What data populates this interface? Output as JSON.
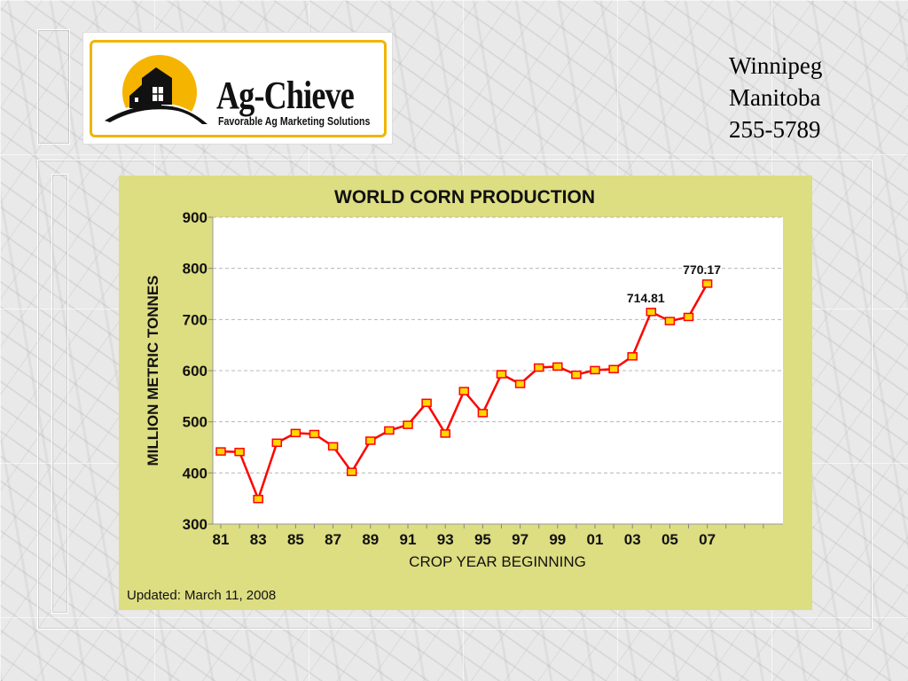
{
  "logo": {
    "name": "Ag-Chieve",
    "tagline": "Favorable Ag Marketing Solutions"
  },
  "contact": {
    "city": "Winnipeg",
    "province": "Manitoba",
    "phone": "255-5789"
  },
  "colors": {
    "panel": "#dddd82",
    "line": "#ff0000",
    "marker_fill": "#ffd700",
    "logo_accent": "#f0b500"
  },
  "chart_data": {
    "type": "line",
    "title": "WORLD CORN PRODUCTION",
    "xlabel": "CROP YEAR BEGINNING",
    "ylabel": "MILLION METRIC TONNES",
    "ylim": [
      300,
      900
    ],
    "yticks": [
      300,
      400,
      500,
      600,
      700,
      800,
      900
    ],
    "x": [
      81,
      82,
      83,
      84,
      85,
      86,
      87,
      88,
      89,
      90,
      91,
      92,
      93,
      94,
      95,
      96,
      97,
      98,
      99,
      100,
      101,
      102,
      103,
      104,
      105,
      106,
      107
    ],
    "xtick_labels": [
      "81",
      "83",
      "85",
      "87",
      "89",
      "91",
      "93",
      "95",
      "97",
      "99",
      "01",
      "03",
      "05",
      "07"
    ],
    "grid": true,
    "series": [
      {
        "values": [
          442,
          441,
          349,
          459,
          478,
          476,
          452,
          402,
          463,
          483,
          494,
          537,
          477,
          560,
          517,
          593,
          574,
          606,
          608,
          592,
          601,
          603,
          628,
          714.81,
          697,
          705,
          770.17
        ]
      }
    ],
    "annotations": [
      {
        "text": "714.81"
      },
      {
        "text": "770.17"
      }
    ],
    "footer": "Updated: March 11, 2008"
  }
}
